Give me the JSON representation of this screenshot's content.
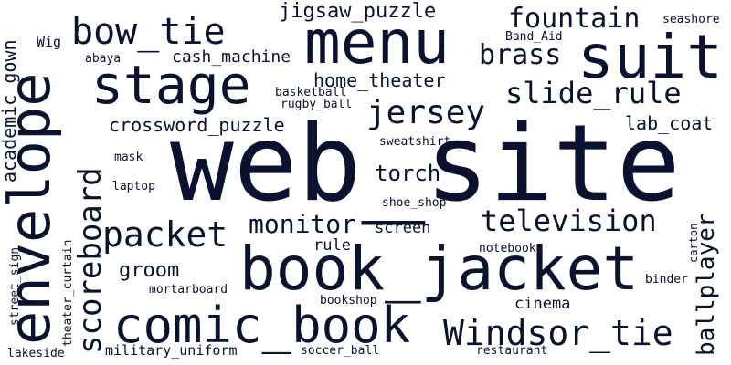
{
  "colors": {
    "background": "#ffffff",
    "text": "#0b1230"
  },
  "words": {
    "web_site": "web_site",
    "book_jacket": "book_jacket",
    "menu": "menu",
    "suit": "suit",
    "stage": "stage",
    "envelope": "envelope",
    "comic_book": "comic_book",
    "bow_tie": "bow_tie",
    "scoreboard": "scoreboard",
    "windsor_tie": "Windsor_tie",
    "packet": "packet",
    "television": "television",
    "jersey": "jersey",
    "slide_rule": "slide_rule",
    "monitor": "monitor",
    "fountain": "fountain",
    "brass": "brass",
    "jigsaw_puzzle": "jigsaw_puzzle",
    "torch": "torch",
    "ballplayer": "ballplayer",
    "crossword_puzzle": "crossword_puzzle",
    "academic_gown": "academic_gown",
    "home_theater": "home_theater",
    "lab_coat": "lab_coat",
    "groom": "groom",
    "cash_machine": "cash_machine",
    "cinema": "cinema",
    "screen": "screen",
    "rule": "rule",
    "military_uniform": "military_uniform",
    "wig": "Wig",
    "seashore": "seashore",
    "band_aid": "Band_Aid",
    "abaya": "abaya",
    "basketball": "basketball",
    "rugby_ball": "rugby_ball",
    "sweatshirt": "sweatshirt",
    "mask": "mask",
    "laptop": "laptop",
    "shoe_shop": "shoe_shop",
    "notebook": "notebook",
    "carton": "carton",
    "binder": "binder",
    "mortarboard": "mortarboard",
    "bookshop": "bookshop",
    "street_sign": "street_sign",
    "theater_curtain": "theater_curtain",
    "lakeside": "lakeside",
    "soccer_ball": "soccer_ball",
    "restaurant": "restaurant"
  }
}
